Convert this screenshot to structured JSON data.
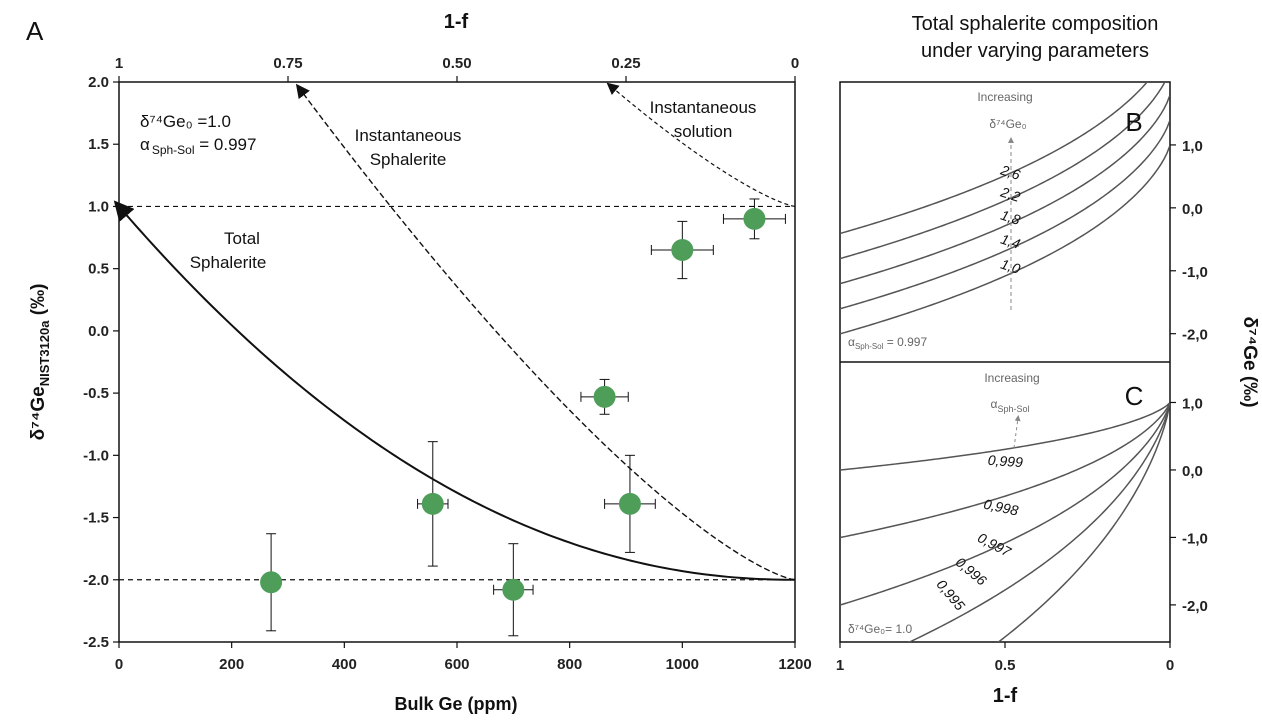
{
  "chart_data": [
    {
      "type": "scatter",
      "panel_label": "A",
      "top_xlabel": "1-f",
      "top_ticks": [
        "1",
        "0.75",
        "0.50",
        "0.25",
        "0"
      ],
      "xlabel": "Bulk Ge (ppm)",
      "ylabel_main": "δ⁷⁴Ge",
      "ylabel_sub": "NIST3120a",
      "ylabel_unit": " (‰)",
      "xlim": [
        0,
        1200
      ],
      "ylim": [
        -2.5,
        2.0
      ],
      "x_ticks": [
        "0",
        "200",
        "400",
        "600",
        "800",
        "1000",
        "1200"
      ],
      "y_ticks": [
        "2.0",
        "1.5",
        "1.0",
        "0.5",
        "0.0",
        "-0.5",
        "-1.0",
        "-1.5",
        "-2.0",
        "-2.5"
      ],
      "y_tick_values": [
        2.0,
        1.5,
        1.0,
        0.5,
        0.0,
        -0.5,
        -1.0,
        -1.5,
        -2.0,
        -2.5
      ],
      "x_tick_values": [
        0,
        200,
        400,
        600,
        800,
        1000,
        1200
      ],
      "params_line1": "δ⁷⁴Ge₀ =1.0",
      "params_line2_a": "α",
      "params_line2_sub": "Sph-Sol",
      "params_line2_b": " = 0.997",
      "label_total_1": "Total",
      "label_total_2": "Sphalerite",
      "label_inst_sph_1": "Instantaneous",
      "label_inst_sph_2": "Sphalerite",
      "label_inst_sol_1": "Instantaneous",
      "label_inst_sol_2": "solution",
      "reference_lines_y": [
        1.0,
        -2.0
      ],
      "marker_color": "#4e9e5a",
      "points": [
        {
          "x": 270,
          "y": -2.02,
          "xerr": 0,
          "yerr": 0.39
        },
        {
          "x": 557,
          "y": -1.39,
          "xerr": 27,
          "yerr": 0.5
        },
        {
          "x": 700,
          "y": -2.08,
          "xerr": 35,
          "yerr": 0.37
        },
        {
          "x": 862,
          "y": -0.53,
          "xerr": 42,
          "yerr": 0.14
        },
        {
          "x": 907,
          "y": -1.39,
          "xerr": 45,
          "yerr": 0.39
        },
        {
          "x": 1000,
          "y": 0.65,
          "xerr": 55,
          "yerr": 0.23
        },
        {
          "x": 1128,
          "y": 0.9,
          "xerr": 55,
          "yerr": 0.16
        }
      ],
      "model": {
        "delta0": 1.0,
        "alpha": 0.997,
        "total_ppm": 1200
      }
    },
    {
      "type": "line",
      "panel_label": "B",
      "title_line1": "Total sphalerite composition",
      "title_line2": "under varying parameters",
      "annotation_1": "Increasing",
      "annotation_2": "δ⁷⁴Ge₀",
      "alpha_label": "α",
      "alpha_sub": "Sph-Sol",
      "alpha_value": " = 0.997",
      "curve_labels": [
        "2,6",
        "2,2",
        "1,8",
        "1,4",
        "1,0"
      ],
      "series": [
        {
          "delta0": 2.6,
          "alpha": 0.997
        },
        {
          "delta0": 2.2,
          "alpha": 0.997
        },
        {
          "delta0": 1.8,
          "alpha": 0.997
        },
        {
          "delta0": 1.4,
          "alpha": 0.997
        },
        {
          "delta0": 1.0,
          "alpha": 0.997
        }
      ],
      "right_ticks": [
        "1,0",
        "0,0",
        "-1,0",
        "-2,0"
      ],
      "right_tick_values": [
        1.0,
        0.0,
        -1.0,
        -2.0
      ],
      "ylim": [
        -2.45,
        2.0
      ],
      "xlim": [
        1,
        0
      ]
    },
    {
      "type": "line",
      "panel_label": "C",
      "annotation_1": "Increasing",
      "annotation_2": "α",
      "annotation_2_sub": "Sph-Sol",
      "delta_label": "δ⁷⁴Ge₀= 1.0",
      "curve_labels": [
        "0,999",
        "0,998",
        "0,997",
        "0,996",
        "0,995"
      ],
      "series": [
        {
          "delta0": 1.0,
          "alpha": 0.999
        },
        {
          "delta0": 1.0,
          "alpha": 0.998
        },
        {
          "delta0": 1.0,
          "alpha": 0.997
        },
        {
          "delta0": 1.0,
          "alpha": 0.996
        },
        {
          "delta0": 1.0,
          "alpha": 0.995
        }
      ],
      "right_ticks": [
        "1,0",
        "0,0",
        "-1,0",
        "-2,0"
      ],
      "right_tick_values": [
        1.0,
        0.0,
        -1.0,
        -2.0
      ],
      "ylim": [
        -2.55,
        1.6
      ],
      "xlabel": "1-f",
      "x_ticks": [
        "1",
        "0.5",
        "0"
      ],
      "xlim": [
        1,
        0
      ],
      "shared_ylabel": "δ⁷⁴Ge (‰)"
    }
  ]
}
